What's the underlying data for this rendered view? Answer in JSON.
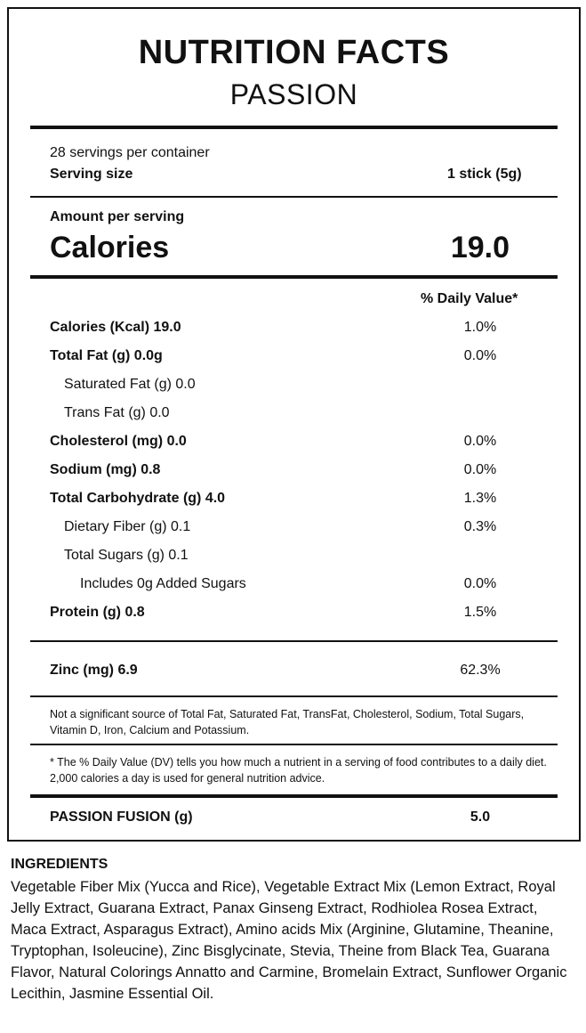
{
  "header": {
    "title": "NUTRITION FACTS",
    "subtitle": "PASSION"
  },
  "serving": {
    "per_container": "28 servings per container",
    "size_label": "Serving size",
    "size_value": "1 stick (5g)"
  },
  "calories": {
    "amount_label": "Amount per serving",
    "label": "Calories",
    "value": "19.0"
  },
  "dv_header": "% Daily Value*",
  "nutrients": [
    {
      "label": "Calories (Kcal) 19.0",
      "dv": "1.0%"
    },
    {
      "label": "Total Fat (g) 0.0g",
      "dv": "0.0%"
    },
    {
      "label": "Saturated Fat (g) 0.0",
      "dv": ""
    },
    {
      "label": "Trans Fat (g) 0.0",
      "dv": ""
    },
    {
      "label": "Cholesterol (mg) 0.0",
      "dv": "0.0%"
    },
    {
      "label": "Sodium (mg) 0.8",
      "dv": "0.0%"
    },
    {
      "label": "Total Carbohydrate (g) 4.0",
      "dv": "1.3%"
    },
    {
      "label": "Dietary Fiber (g) 0.1",
      "dv": "0.3%"
    },
    {
      "label": "Total Sugars (g) 0.1",
      "dv": ""
    },
    {
      "label": "Includes 0g Added Sugars",
      "dv": "0.0%"
    },
    {
      "label": "Protein (g) 0.8",
      "dv": "1.5%"
    }
  ],
  "zinc": {
    "label": "Zinc (mg) 6.9",
    "dv": "62.3%"
  },
  "notes": {
    "not_significant": "Not a significant source of Total Fat, Saturated Fat, TransFat, Cholesterol, Sodium, Total Sugars, Vitamin D, Iron, Calcium and Potassium.",
    "dv_footnote": "* The % Daily Value (DV) tells you how much a nutrient in a serving of food contributes to a daily diet. 2,000 calories a day is used for general nutrition advice."
  },
  "fusion": {
    "label": "PASSION FUSION (g)",
    "value": "5.0"
  },
  "ingredients": {
    "heading": "INGREDIENTS",
    "text": "Vegetable Fiber Mix (Yucca and Rice), Vegetable Extract Mix (Lemon Extract, Royal Jelly Extract, Guarana Extract, Panax Ginseng Extract, Rodhiolea Rosea Extract, Maca Extract, Asparagus Extract), Amino acids Mix (Arginine, Glutamine, Theanine, Tryptophan, Isoleucine), Zinc Bisglycinate, Stevia, Theine from Black Tea, Guarana Flavor, Natural Colorings Annatto and Carmine, Bromelain Extract, Sunflower Organic Lecithin, Jasmine Essential Oil."
  }
}
